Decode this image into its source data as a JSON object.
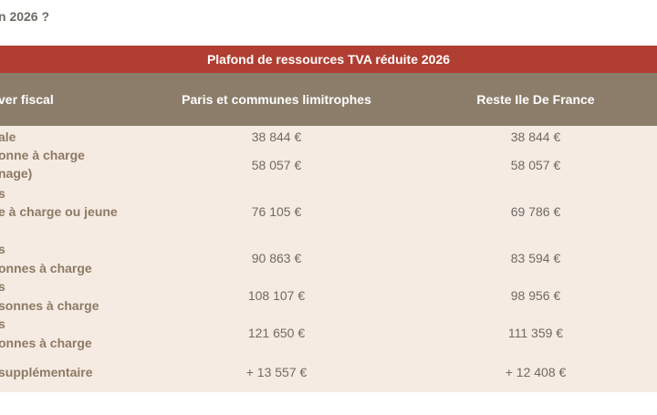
{
  "heading": "n 2026 ?",
  "table": {
    "title": "Plafond de ressources TVA réduite 2026",
    "headers": [
      "ver fiscal",
      "Paris et communes limitrophes",
      "Reste Ile De France"
    ],
    "rows": [
      {
        "label": [
          "ale"
        ],
        "paris": "38 844 €",
        "idf": "38 844 €"
      },
      {
        "label": [
          "onne à charge",
          "nage)"
        ],
        "paris": "58 057 €",
        "idf": "58 057 €"
      },
      {
        "label": [
          "s",
          "e à charge ou jeune"
        ],
        "paris": "76 105 €",
        "idf": "69 786 €"
      },
      {
        "label": [
          "s",
          "onnes à charge"
        ],
        "paris": "90 863 €",
        "idf": "83 594 €"
      },
      {
        "label": [
          "s",
          "sonnes à charge"
        ],
        "paris": "108 107 €",
        "idf": "98 956 €"
      },
      {
        "label": [
          "s",
          "onnes à charge"
        ],
        "paris": "121 650 €",
        "idf": "111 359 €"
      },
      {
        "label": [
          "supplémentaire"
        ],
        "paris": "+ 13 557 €",
        "idf": "+ 12 408 €"
      }
    ]
  }
}
